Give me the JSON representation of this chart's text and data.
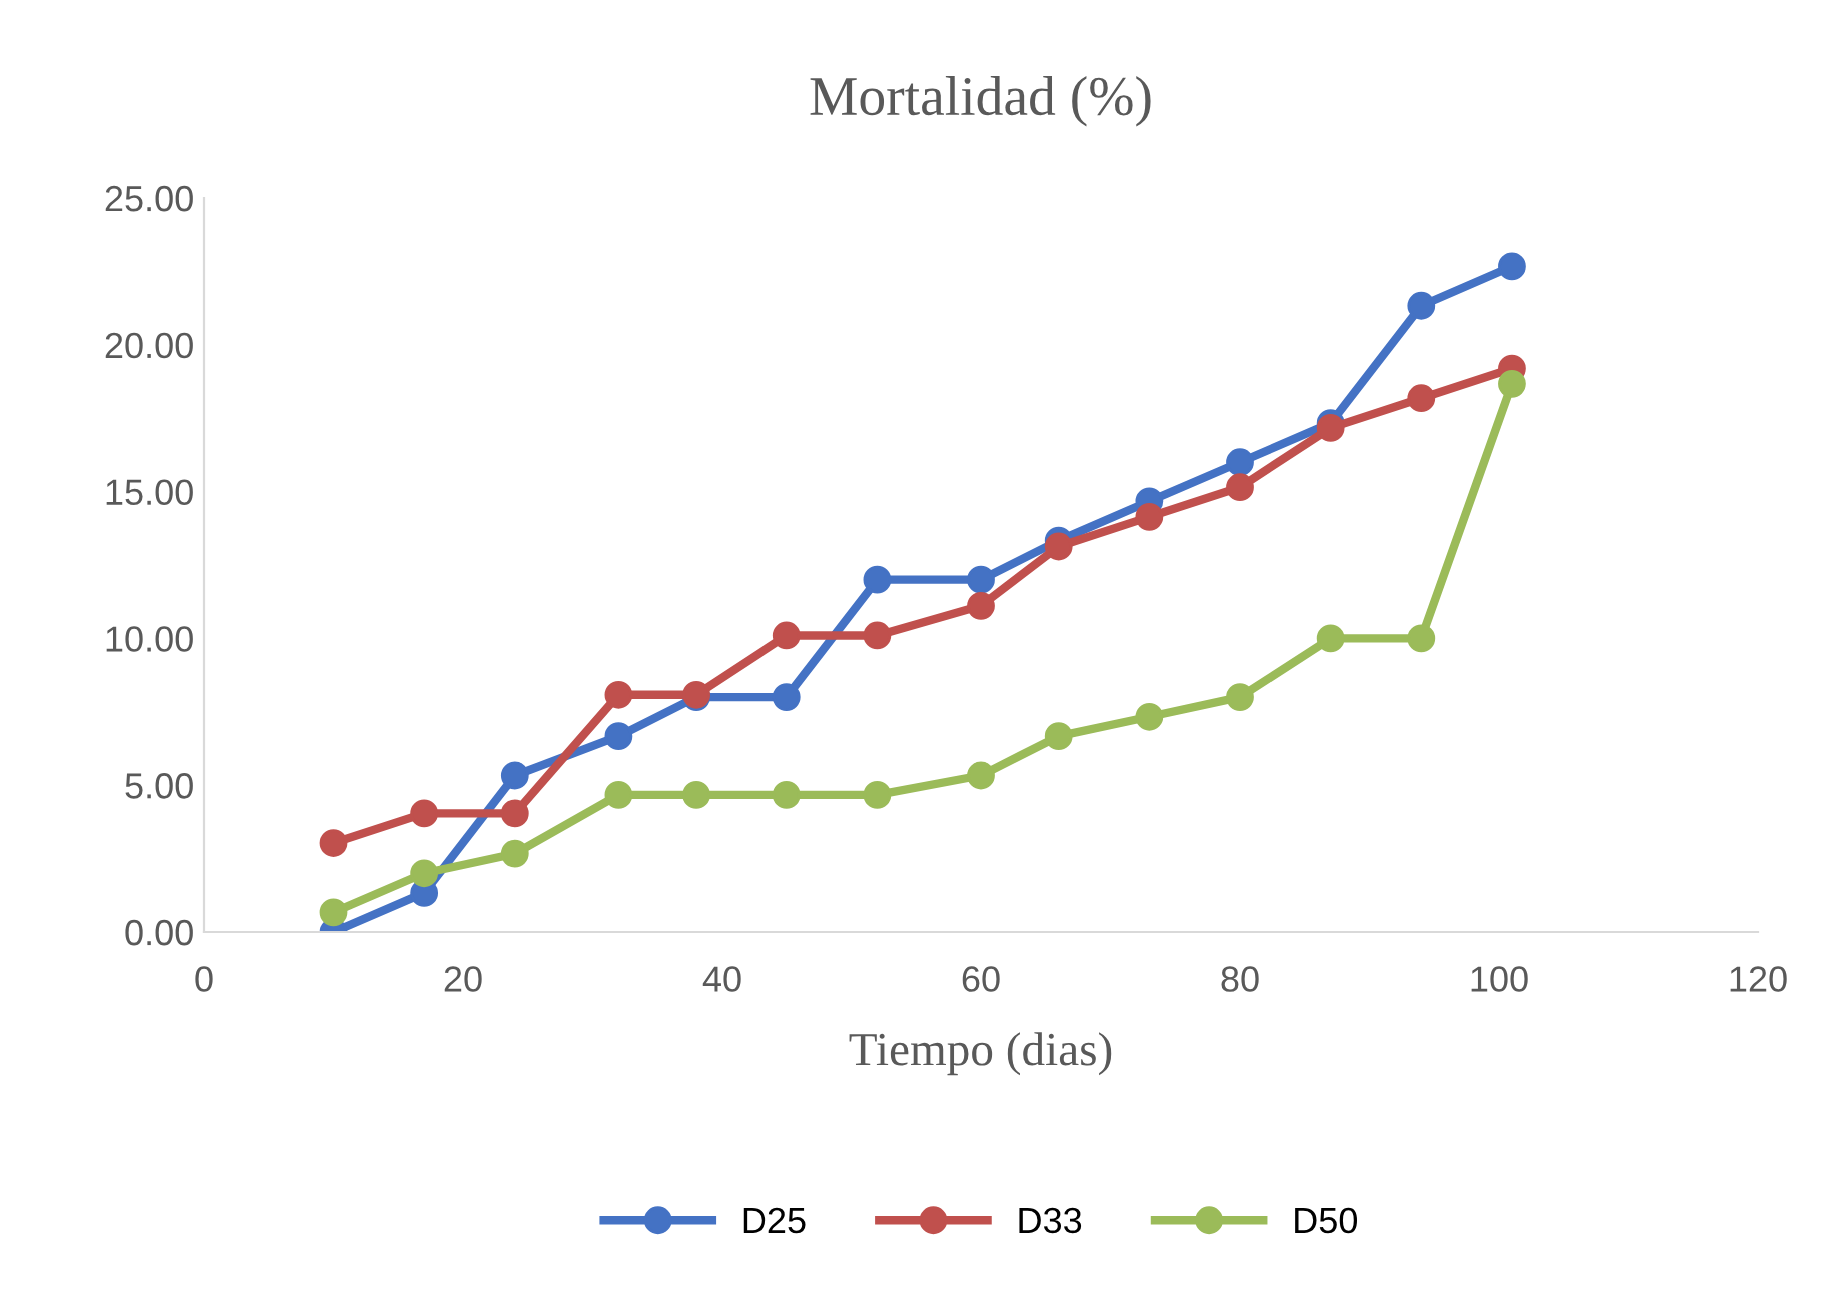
{
  "chart_data": {
    "type": "line",
    "title": "Mortalidad (%)",
    "xlabel": "Tiempo (dias)",
    "x": [
      10,
      17,
      24,
      32,
      38,
      45,
      52,
      60,
      66,
      73,
      80,
      87,
      94,
      101
    ],
    "series": [
      {
        "name": "D25",
        "color": "#4472c4",
        "values": [
          0,
          1.33,
          5.33,
          6.67,
          8,
          8,
          12,
          12,
          13.33,
          14.67,
          16,
          17.33,
          21.33,
          22.67
        ]
      },
      {
        "name": "D33",
        "color": "#c0504d",
        "values": [
          3.03,
          4.04,
          4.04,
          8.08,
          8.08,
          10.1,
          10.1,
          11.11,
          13.13,
          14.14,
          15.15,
          17.17,
          18.18,
          19.19
        ]
      },
      {
        "name": "D50",
        "color": "#9bbb59",
        "values": [
          0.67,
          2,
          2.67,
          4.67,
          4.67,
          4.67,
          4.67,
          5.33,
          6.67,
          7.33,
          8,
          10,
          10,
          18.67
        ]
      }
    ],
    "xlim": [
      0,
      120
    ],
    "xticks": [
      0,
      20,
      40,
      60,
      80,
      100,
      120
    ],
    "ylim": [
      0,
      25
    ],
    "yticks": [
      {
        "value": 0,
        "label": "0.00"
      },
      {
        "value": 5,
        "label": "5.00"
      },
      {
        "value": 10,
        "label": "10.00"
      },
      {
        "value": 15,
        "label": "15.00"
      },
      {
        "value": 20,
        "label": "20.00"
      },
      {
        "value": 25,
        "label": "25.00"
      }
    ],
    "legend": "bottom",
    "marker": "circle",
    "line_style": "solid"
  }
}
